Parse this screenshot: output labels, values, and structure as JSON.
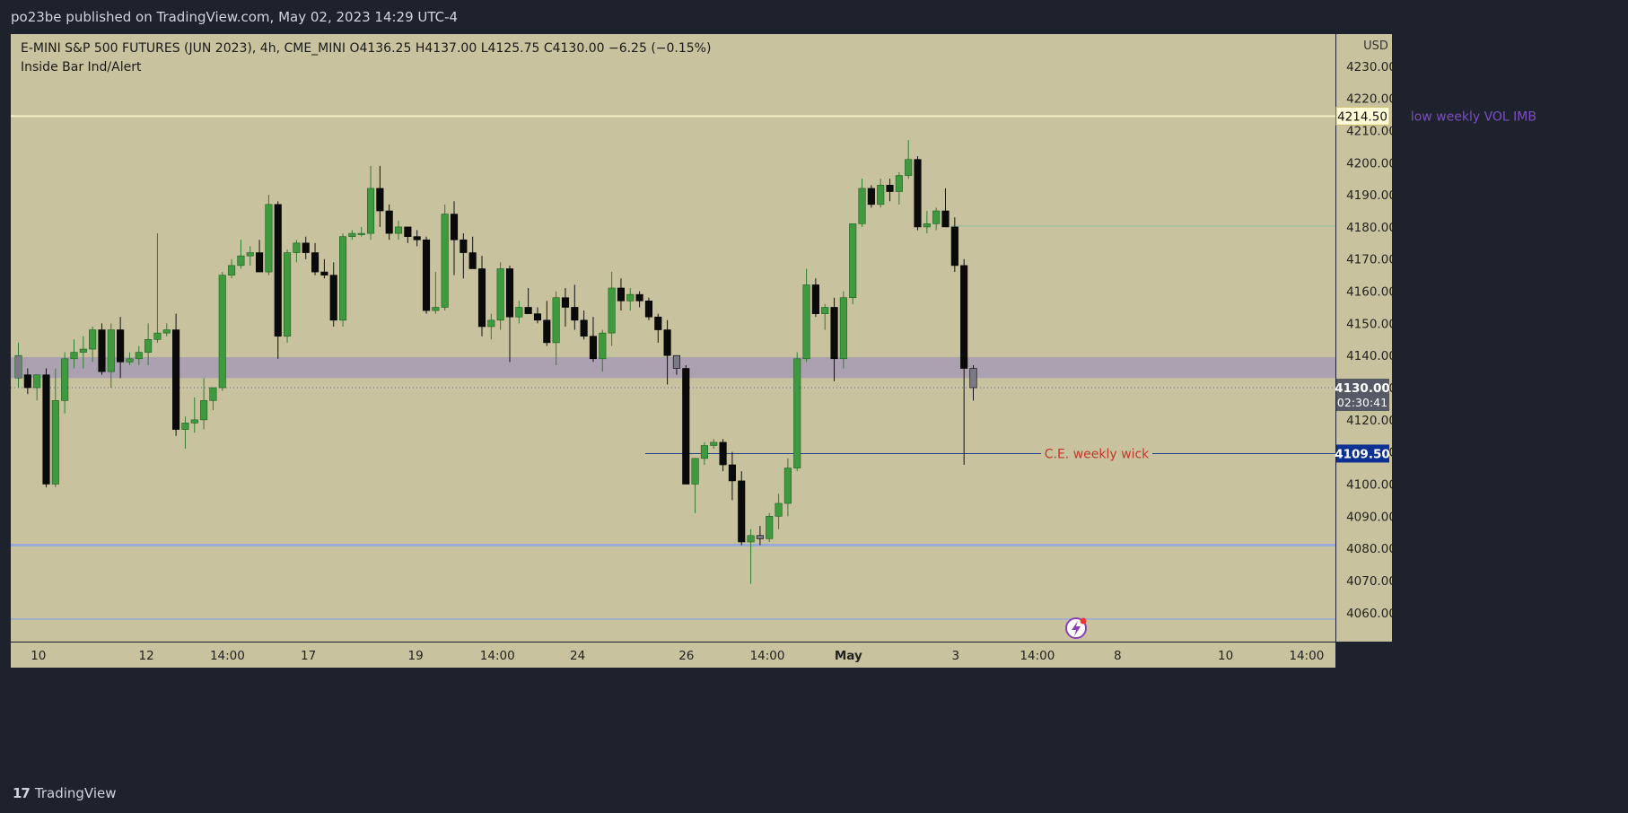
{
  "header": {
    "published": "po23be published on TradingView.com, May 02, 2023 14:29 UTC-4"
  },
  "footer": {
    "brand": "TradingView",
    "logo": "tradingview-logo-icon"
  },
  "colors": {
    "background": "#c8c29e",
    "frame": "#1e222d",
    "bull": "#3f9a3f",
    "bear": "#0a0a0a",
    "inside_bar": "#7a7a86",
    "zone": "#ab9fb1",
    "label_purple": "#7a4fbe",
    "label_red": "#c0392b",
    "price_tag_blue": "#0c3192",
    "price_tag_gray": "#555a66"
  },
  "chart_data": {
    "type": "candlestick",
    "legend": {
      "symbol": "E-MINI S&P 500 FUTURES (JUN 2023), 4h, CME_MINI",
      "open": "O4136.25",
      "high": "H4137.00",
      "low": "L4125.75",
      "close": "C4130.00",
      "change": "−6.25 (−0.15%)",
      "indicator": "Inside Bar Ind/Alert"
    },
    "currency": "USD",
    "y_range": [
      4051,
      4240
    ],
    "y_ticks": [
      4060,
      4070,
      4080,
      4090,
      4100,
      4110,
      4120,
      4130,
      4140,
      4150,
      4160,
      4170,
      4180,
      4190,
      4200,
      4210,
      4220,
      4230
    ],
    "x_ticks": [
      "10",
      "12",
      "14:00",
      "17",
      "19",
      "14:00",
      "24",
      "26",
      "14:00",
      "May",
      "3",
      "14:00",
      "8",
      "10",
      "14:00"
    ],
    "candles": [
      {
        "o": 4133,
        "h": 4144,
        "l": 4130,
        "c": 4140,
        "inside": true
      },
      {
        "o": 4134,
        "h": 4136,
        "l": 4128,
        "c": 4130
      },
      {
        "o": 4130,
        "h": 4134,
        "l": 4126,
        "c": 4134
      },
      {
        "o": 4134,
        "h": 4136,
        "l": 4099,
        "c": 4100
      },
      {
        "o": 4100,
        "h": 4136,
        "l": 4099,
        "c": 4126
      },
      {
        "o": 4126,
        "h": 4141,
        "l": 4122,
        "c": 4139
      },
      {
        "o": 4139,
        "h": 4145,
        "l": 4136,
        "c": 4141
      },
      {
        "o": 4141,
        "h": 4146,
        "l": 4136,
        "c": 4142
      },
      {
        "o": 4142,
        "h": 4149,
        "l": 4138,
        "c": 4148
      },
      {
        "o": 4148,
        "h": 4150,
        "l": 4134,
        "c": 4135
      },
      {
        "o": 4135,
        "h": 4150,
        "l": 4130,
        "c": 4148
      },
      {
        "o": 4148,
        "h": 4152,
        "l": 4133,
        "c": 4138
      },
      {
        "o": 4138,
        "h": 4141,
        "l": 4137,
        "c": 4139
      },
      {
        "o": 4139,
        "h": 4143,
        "l": 4137,
        "c": 4141
      },
      {
        "o": 4141,
        "h": 4150,
        "l": 4137,
        "c": 4145
      },
      {
        "o": 4145,
        "h": 4178,
        "l": 4144,
        "c": 4147
      },
      {
        "o": 4147,
        "h": 4150,
        "l": 4146,
        "c": 4148
      },
      {
        "o": 4148,
        "h": 4153,
        "l": 4115,
        "c": 4117
      },
      {
        "o": 4117,
        "h": 4121,
        "l": 4111,
        "c": 4119
      },
      {
        "o": 4119,
        "h": 4127,
        "l": 4116,
        "c": 4120
      },
      {
        "o": 4120,
        "h": 4133,
        "l": 4117,
        "c": 4126
      },
      {
        "o": 4126,
        "h": 4130,
        "l": 4123,
        "c": 4130
      },
      {
        "o": 4130,
        "h": 4166,
        "l": 4129,
        "c": 4165
      },
      {
        "o": 4165,
        "h": 4170,
        "l": 4164,
        "c": 4168
      },
      {
        "o": 4168,
        "h": 4176,
        "l": 4167,
        "c": 4171
      },
      {
        "o": 4171,
        "h": 4174,
        "l": 4168,
        "c": 4172
      },
      {
        "o": 4172,
        "h": 4176,
        "l": 4166,
        "c": 4166
      },
      {
        "o": 4166,
        "h": 4190,
        "l": 4165,
        "c": 4187
      },
      {
        "o": 4187,
        "h": 4188,
        "l": 4139,
        "c": 4146
      },
      {
        "o": 4146,
        "h": 4173,
        "l": 4144,
        "c": 4172
      },
      {
        "o": 4172,
        "h": 4176,
        "l": 4169,
        "c": 4175
      },
      {
        "o": 4175,
        "h": 4177,
        "l": 4170,
        "c": 4172
      },
      {
        "o": 4172,
        "h": 4175,
        "l": 4165,
        "c": 4166
      },
      {
        "o": 4166,
        "h": 4170,
        "l": 4164,
        "c": 4165
      },
      {
        "o": 4165,
        "h": 4169,
        "l": 4149,
        "c": 4151
      },
      {
        "o": 4151,
        "h": 4178,
        "l": 4149,
        "c": 4177
      },
      {
        "o": 4177,
        "h": 4179,
        "l": 4176,
        "c": 4178
      },
      {
        "o": 4178,
        "h": 4180,
        "l": 4177,
        "c": 4178
      },
      {
        "o": 4178,
        "h": 4199,
        "l": 4176,
        "c": 4192
      },
      {
        "o": 4192,
        "h": 4199,
        "l": 4180,
        "c": 4185
      },
      {
        "o": 4185,
        "h": 4187,
        "l": 4176,
        "c": 4178
      },
      {
        "o": 4178,
        "h": 4182,
        "l": 4176,
        "c": 4180
      },
      {
        "o": 4180,
        "h": 4180,
        "l": 4175,
        "c": 4177
      },
      {
        "o": 4177,
        "h": 4179,
        "l": 4174,
        "c": 4176
      },
      {
        "o": 4176,
        "h": 4177,
        "l": 4153,
        "c": 4154
      },
      {
        "o": 4154,
        "h": 4166,
        "l": 4153,
        "c": 4155
      },
      {
        "o": 4155,
        "h": 4187,
        "l": 4154,
        "c": 4184
      },
      {
        "o": 4184,
        "h": 4188,
        "l": 4165,
        "c": 4176
      },
      {
        "o": 4176,
        "h": 4178,
        "l": 4164,
        "c": 4172
      },
      {
        "o": 4172,
        "h": 4177,
        "l": 4168,
        "c": 4167
      },
      {
        "o": 4167,
        "h": 4171,
        "l": 4146,
        "c": 4149
      },
      {
        "o": 4149,
        "h": 4153,
        "l": 4145,
        "c": 4151
      },
      {
        "o": 4151,
        "h": 4169,
        "l": 4148,
        "c": 4167
      },
      {
        "o": 4167,
        "h": 4168,
        "l": 4138,
        "c": 4152
      },
      {
        "o": 4152,
        "h": 4157,
        "l": 4150,
        "c": 4155
      },
      {
        "o": 4155,
        "h": 4161,
        "l": 4153,
        "c": 4153
      },
      {
        "o": 4153,
        "h": 4155,
        "l": 4150,
        "c": 4151
      },
      {
        "o": 4151,
        "h": 4157,
        "l": 4143,
        "c": 4144
      },
      {
        "o": 4144,
        "h": 4160,
        "l": 4137,
        "c": 4158
      },
      {
        "o": 4158,
        "h": 4161,
        "l": 4149,
        "c": 4155
      },
      {
        "o": 4155,
        "h": 4162,
        "l": 4148,
        "c": 4151
      },
      {
        "o": 4151,
        "h": 4154,
        "l": 4145,
        "c": 4146
      },
      {
        "o": 4146,
        "h": 4152,
        "l": 4138,
        "c": 4139
      },
      {
        "o": 4139,
        "h": 4148,
        "l": 4135,
        "c": 4147
      },
      {
        "o": 4147,
        "h": 4166,
        "l": 4143,
        "c": 4161
      },
      {
        "o": 4161,
        "h": 4164,
        "l": 4154,
        "c": 4157
      },
      {
        "o": 4157,
        "h": 4161,
        "l": 4154,
        "c": 4159
      },
      {
        "o": 4159,
        "h": 4160,
        "l": 4155,
        "c": 4157
      },
      {
        "o": 4157,
        "h": 4158,
        "l": 4151,
        "c": 4152
      },
      {
        "o": 4152,
        "h": 4153,
        "l": 4144,
        "c": 4148
      },
      {
        "o": 4148,
        "h": 4151,
        "l": 4131,
        "c": 4140
      },
      {
        "o": 4140,
        "h": 4140,
        "l": 4134,
        "c": 4136,
        "inside": true
      },
      {
        "o": 4136,
        "h": 4137,
        "l": 4100,
        "c": 4100
      },
      {
        "o": 4100,
        "h": 4108,
        "l": 4091,
        "c": 4108
      },
      {
        "o": 4108,
        "h": 4113,
        "l": 4106,
        "c": 4112
      },
      {
        "o": 4112,
        "h": 4114,
        "l": 4111,
        "c": 4113
      },
      {
        "o": 4113,
        "h": 4114,
        "l": 4104,
        "c": 4106
      },
      {
        "o": 4106,
        "h": 4110,
        "l": 4095,
        "c": 4101
      },
      {
        "o": 4101,
        "h": 4104,
        "l": 4081,
        "c": 4082
      },
      {
        "o": 4082,
        "h": 4086,
        "l": 4069,
        "c": 4084
      },
      {
        "o": 4084,
        "h": 4087,
        "l": 4081,
        "c": 4083,
        "inside": true
      },
      {
        "o": 4083,
        "h": 4091,
        "l": 4082,
        "c": 4090
      },
      {
        "o": 4090,
        "h": 4097,
        "l": 4086,
        "c": 4094
      },
      {
        "o": 4094,
        "h": 4108,
        "l": 4090,
        "c": 4105
      },
      {
        "o": 4105,
        "h": 4141,
        "l": 4104,
        "c": 4139
      },
      {
        "o": 4139,
        "h": 4167,
        "l": 4138,
        "c": 4162
      },
      {
        "o": 4162,
        "h": 4164,
        "l": 4152,
        "c": 4153
      },
      {
        "o": 4153,
        "h": 4156,
        "l": 4148,
        "c": 4155
      },
      {
        "o": 4155,
        "h": 4158,
        "l": 4132,
        "c": 4139
      },
      {
        "o": 4139,
        "h": 4160,
        "l": 4136,
        "c": 4158
      },
      {
        "o": 4158,
        "h": 4181,
        "l": 4156,
        "c": 4181
      },
      {
        "o": 4181,
        "h": 4195,
        "l": 4180,
        "c": 4192
      },
      {
        "o": 4192,
        "h": 4193,
        "l": 4186,
        "c": 4187
      },
      {
        "o": 4187,
        "h": 4195,
        "l": 4186,
        "c": 4193
      },
      {
        "o": 4193,
        "h": 4195,
        "l": 4188,
        "c": 4191
      },
      {
        "o": 4191,
        "h": 4197,
        "l": 4187,
        "c": 4196
      },
      {
        "o": 4196,
        "h": 4207,
        "l": 4195,
        "c": 4201
      },
      {
        "o": 4201,
        "h": 4202,
        "l": 4179,
        "c": 4180
      },
      {
        "o": 4180,
        "h": 4185,
        "l": 4178,
        "c": 4181
      },
      {
        "o": 4181,
        "h": 4186,
        "l": 4179,
        "c": 4185
      },
      {
        "o": 4185,
        "h": 4192,
        "l": 4180,
        "c": 4180
      },
      {
        "o": 4180,
        "h": 4183,
        "l": 4166,
        "c": 4168
      },
      {
        "o": 4168,
        "h": 4170,
        "l": 4106,
        "c": 4136
      },
      {
        "o": 4136,
        "h": 4137,
        "l": 4126,
        "c": 4130,
        "inside": true
      }
    ],
    "zone": {
      "low": 4133,
      "high": 4139.5
    },
    "levels": [
      {
        "price": 4214.5,
        "label": "low weekly VOL IMB",
        "tag": "4214.50"
      },
      {
        "price": 4109.5,
        "label": "C.E. weekly wick",
        "tag": "4109.50"
      },
      {
        "price": 4180.3
      },
      {
        "price": 4081
      },
      {
        "price": 4058
      }
    ],
    "last_price": {
      "price": 4130,
      "tag": "4130.00",
      "countdown": "02:30:41"
    }
  }
}
